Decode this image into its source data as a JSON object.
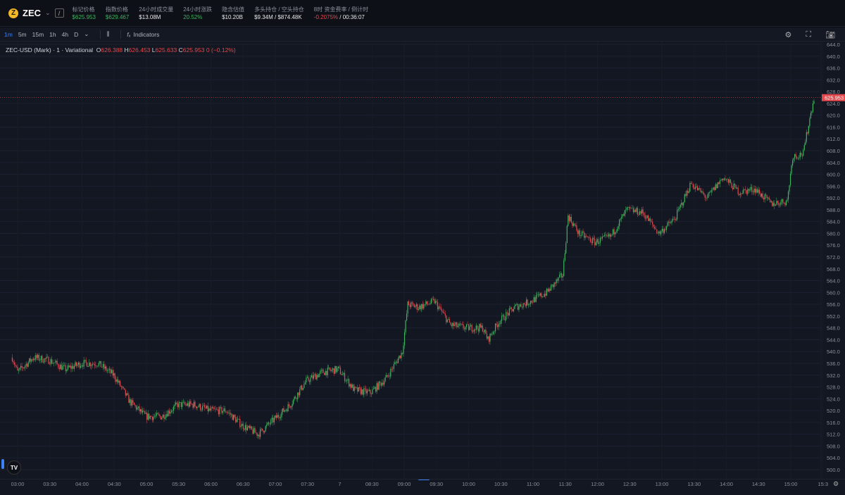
{
  "header": {
    "symbol": "ZEC",
    "logo_letter": "Z",
    "stats": [
      {
        "label": "标记价格",
        "value": "$625.953",
        "color": "green"
      },
      {
        "label": "指数价格",
        "value": "$629.467",
        "color": "green"
      },
      {
        "label": "24小时成交量",
        "value": "$13.08M"
      },
      {
        "label": "24小时涨跌",
        "value": "20.52%",
        "color": "green"
      },
      {
        "label": "隐含估值",
        "value": "$10.20B"
      },
      {
        "label": "多头持仓 / 空头持仓",
        "value": "$9.34M / $874.48K"
      },
      {
        "label": "8时 资金费率 / 倒计时",
        "value": "-0.2075%",
        "value2": "00:36:07"
      }
    ]
  },
  "toolbar": {
    "intervals": [
      "1m",
      "5m",
      "15m",
      "1h",
      "4h",
      "D"
    ],
    "active": "1m",
    "indicators": "Indicators"
  },
  "legend": {
    "title": "ZEC-USD (Mark) · 1 · Variational",
    "o": "626.388",
    "h": "626.453",
    "l": "625.633",
    "c": "625.953",
    "chg": "0 (−0.12%)"
  },
  "colors": {
    "up": "#3fb45e",
    "down": "#e5484d",
    "bg": "#131722"
  },
  "chart_data": {
    "type": "candlestick",
    "ylim": [
      500,
      644
    ],
    "yticks": [
      "500.0",
      "504.0",
      "508.0",
      "512.0",
      "516.0",
      "520.0",
      "524.0",
      "528.0",
      "532.0",
      "536.0",
      "540.0",
      "544.0",
      "548.0",
      "552.0",
      "556.0",
      "560.0",
      "564.0",
      "568.0",
      "572.0",
      "576.0",
      "580.0",
      "584.0",
      "588.0",
      "592.0",
      "596.0",
      "600.0",
      "604.0",
      "608.0",
      "612.0",
      "616.0",
      "620.0",
      "624.0",
      "628.0",
      "632.0",
      "636.0",
      "640.0",
      "644.0"
    ],
    "xticks": [
      "03:00",
      "03:30",
      "04:00",
      "04:30",
      "05:00",
      "05:30",
      "06:00",
      "06:30",
      "07:00",
      "07:30",
      "7",
      "08:30",
      "09:00",
      "09:30",
      "10:00",
      "10:30",
      "11:00",
      "11:30",
      "12:00",
      "12:30",
      "13:00",
      "13:30",
      "14:00",
      "14:30",
      "15:00",
      "15:3"
    ],
    "last_price": "625.953",
    "approx_close": [
      [
        "02:55",
        538
      ],
      [
        "03:00",
        533
      ],
      [
        "03:15",
        538
      ],
      [
        "03:30",
        537
      ],
      [
        "03:45",
        534
      ],
      [
        "04:00",
        536
      ],
      [
        "04:15",
        536
      ],
      [
        "04:30",
        532
      ],
      [
        "04:45",
        523
      ],
      [
        "05:00",
        518
      ],
      [
        "05:15",
        518
      ],
      [
        "05:30",
        522
      ],
      [
        "05:45",
        522
      ],
      [
        "06:00",
        520
      ],
      [
        "06:15",
        520
      ],
      [
        "06:30",
        515
      ],
      [
        "06:45",
        512
      ],
      [
        "07:00",
        517
      ],
      [
        "07:15",
        522
      ],
      [
        "07:30",
        530
      ],
      [
        "07:45",
        533
      ],
      [
        "08:00",
        534
      ],
      [
        "08:15",
        527
      ],
      [
        "08:30",
        526
      ],
      [
        "08:45",
        531
      ],
      [
        "09:00",
        540
      ],
      [
        "09:05",
        556
      ],
      [
        "09:15",
        555
      ],
      [
        "09:30",
        557
      ],
      [
        "09:45",
        549
      ],
      [
        "10:00",
        548
      ],
      [
        "10:15",
        548
      ],
      [
        "10:20",
        544
      ],
      [
        "10:30",
        550
      ],
      [
        "10:45",
        555
      ],
      [
        "11:00",
        557
      ],
      [
        "11:15",
        560
      ],
      [
        "11:30",
        566
      ],
      [
        "11:35",
        586
      ],
      [
        "11:45",
        580
      ],
      [
        "12:00",
        577
      ],
      [
        "12:15",
        579
      ],
      [
        "12:30",
        588
      ],
      [
        "12:45",
        587
      ],
      [
        "13:00",
        580
      ],
      [
        "13:15",
        585
      ],
      [
        "13:30",
        597
      ],
      [
        "13:45",
        592
      ],
      [
        "14:00",
        599
      ],
      [
        "14:15",
        594
      ],
      [
        "14:30",
        595
      ],
      [
        "14:45",
        590
      ],
      [
        "15:00",
        591
      ],
      [
        "15:05",
        606
      ],
      [
        "15:15",
        607
      ],
      [
        "15:20",
        617
      ],
      [
        "15:25",
        626
      ]
    ]
  }
}
